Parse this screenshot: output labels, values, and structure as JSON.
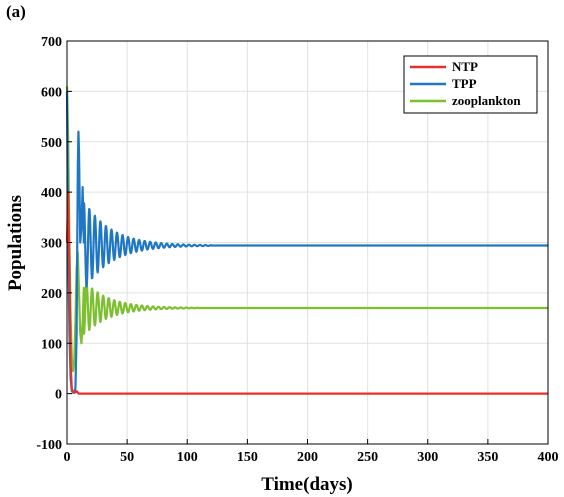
{
  "panel_label": "(a)",
  "chart_data": {
    "type": "line",
    "xlabel": "Time(days)",
    "ylabel": "Populations",
    "xlim": [
      0,
      400
    ],
    "ylim": [
      -100,
      700
    ],
    "xticks": [
      0,
      50,
      100,
      150,
      200,
      250,
      300,
      350,
      400
    ],
    "yticks": [
      -100,
      0,
      100,
      200,
      300,
      400,
      500,
      600,
      700
    ],
    "grid": true,
    "legend_position": "top-right",
    "series": [
      {
        "name": "NTP",
        "color": "#e8312a",
        "x": [
          0,
          1,
          2,
          3,
          4,
          5,
          6,
          7,
          8,
          9,
          10,
          12,
          15,
          20,
          400
        ],
        "y": [
          300,
          400,
          250,
          60,
          10,
          3,
          2,
          3,
          5,
          2,
          0,
          0,
          0,
          0,
          0
        ]
      },
      {
        "name": "TPP",
        "color": "#1f77c4",
        "x": [
          0,
          1,
          2,
          3,
          4,
          5,
          6,
          7,
          8,
          9,
          9.5,
          10,
          11,
          12,
          13,
          14,
          16,
          18,
          20,
          25,
          30,
          35,
          40,
          50,
          60,
          70,
          80,
          90,
          100,
          120,
          400
        ],
        "y": [
          600,
          300,
          120,
          30,
          5,
          2,
          2,
          10,
          120,
          450,
          520,
          480,
          300,
          330,
          410,
          300,
          380,
          310,
          360,
          340,
          328,
          318,
          310,
          303,
          299,
          296,
          295,
          294,
          294,
          294,
          294
        ],
        "envelope": {
          "decay_center": 294,
          "osc_until": 120
        }
      },
      {
        "name": "zooplankton",
        "color": "#7cbf2f",
        "x": [
          0,
          1,
          2,
          3,
          4,
          5,
          6,
          7,
          8,
          9,
          10,
          11,
          12,
          13,
          14,
          16,
          18,
          20,
          25,
          30,
          35,
          40,
          50,
          60,
          70,
          80,
          90,
          100,
          120,
          400
        ],
        "y": [
          610,
          500,
          300,
          150,
          70,
          45,
          60,
          140,
          250,
          280,
          200,
          120,
          100,
          140,
          210,
          130,
          200,
          145,
          190,
          155,
          182,
          160,
          175,
          168,
          171,
          169,
          170,
          170,
          170,
          170
        ]
      }
    ]
  }
}
